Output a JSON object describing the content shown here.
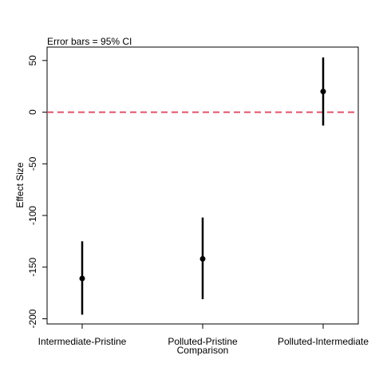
{
  "chart_data": {
    "type": "scatter",
    "annotation": "Error bars = 95% CI",
    "xlabel": "Comparison",
    "ylabel": "Effect Size",
    "categories": [
      "Intermediate-Pristine",
      "Polluted-Pristine",
      "Polluted-Intermediate"
    ],
    "series": [
      {
        "estimates": [
          -161,
          -142,
          20
        ],
        "ci_lower": [
          -196,
          -181,
          -13
        ],
        "ci_upper": [
          -125,
          -102,
          53
        ]
      }
    ],
    "ylim": [
      -205,
      63
    ],
    "yticks": [
      50,
      0,
      -50,
      -100,
      -150,
      -200
    ],
    "reference_line": {
      "y": 0,
      "color": "#df536b",
      "style": "dashed"
    },
    "grid": false,
    "colors": {
      "points": "#000000",
      "reference": "#df536b"
    }
  }
}
